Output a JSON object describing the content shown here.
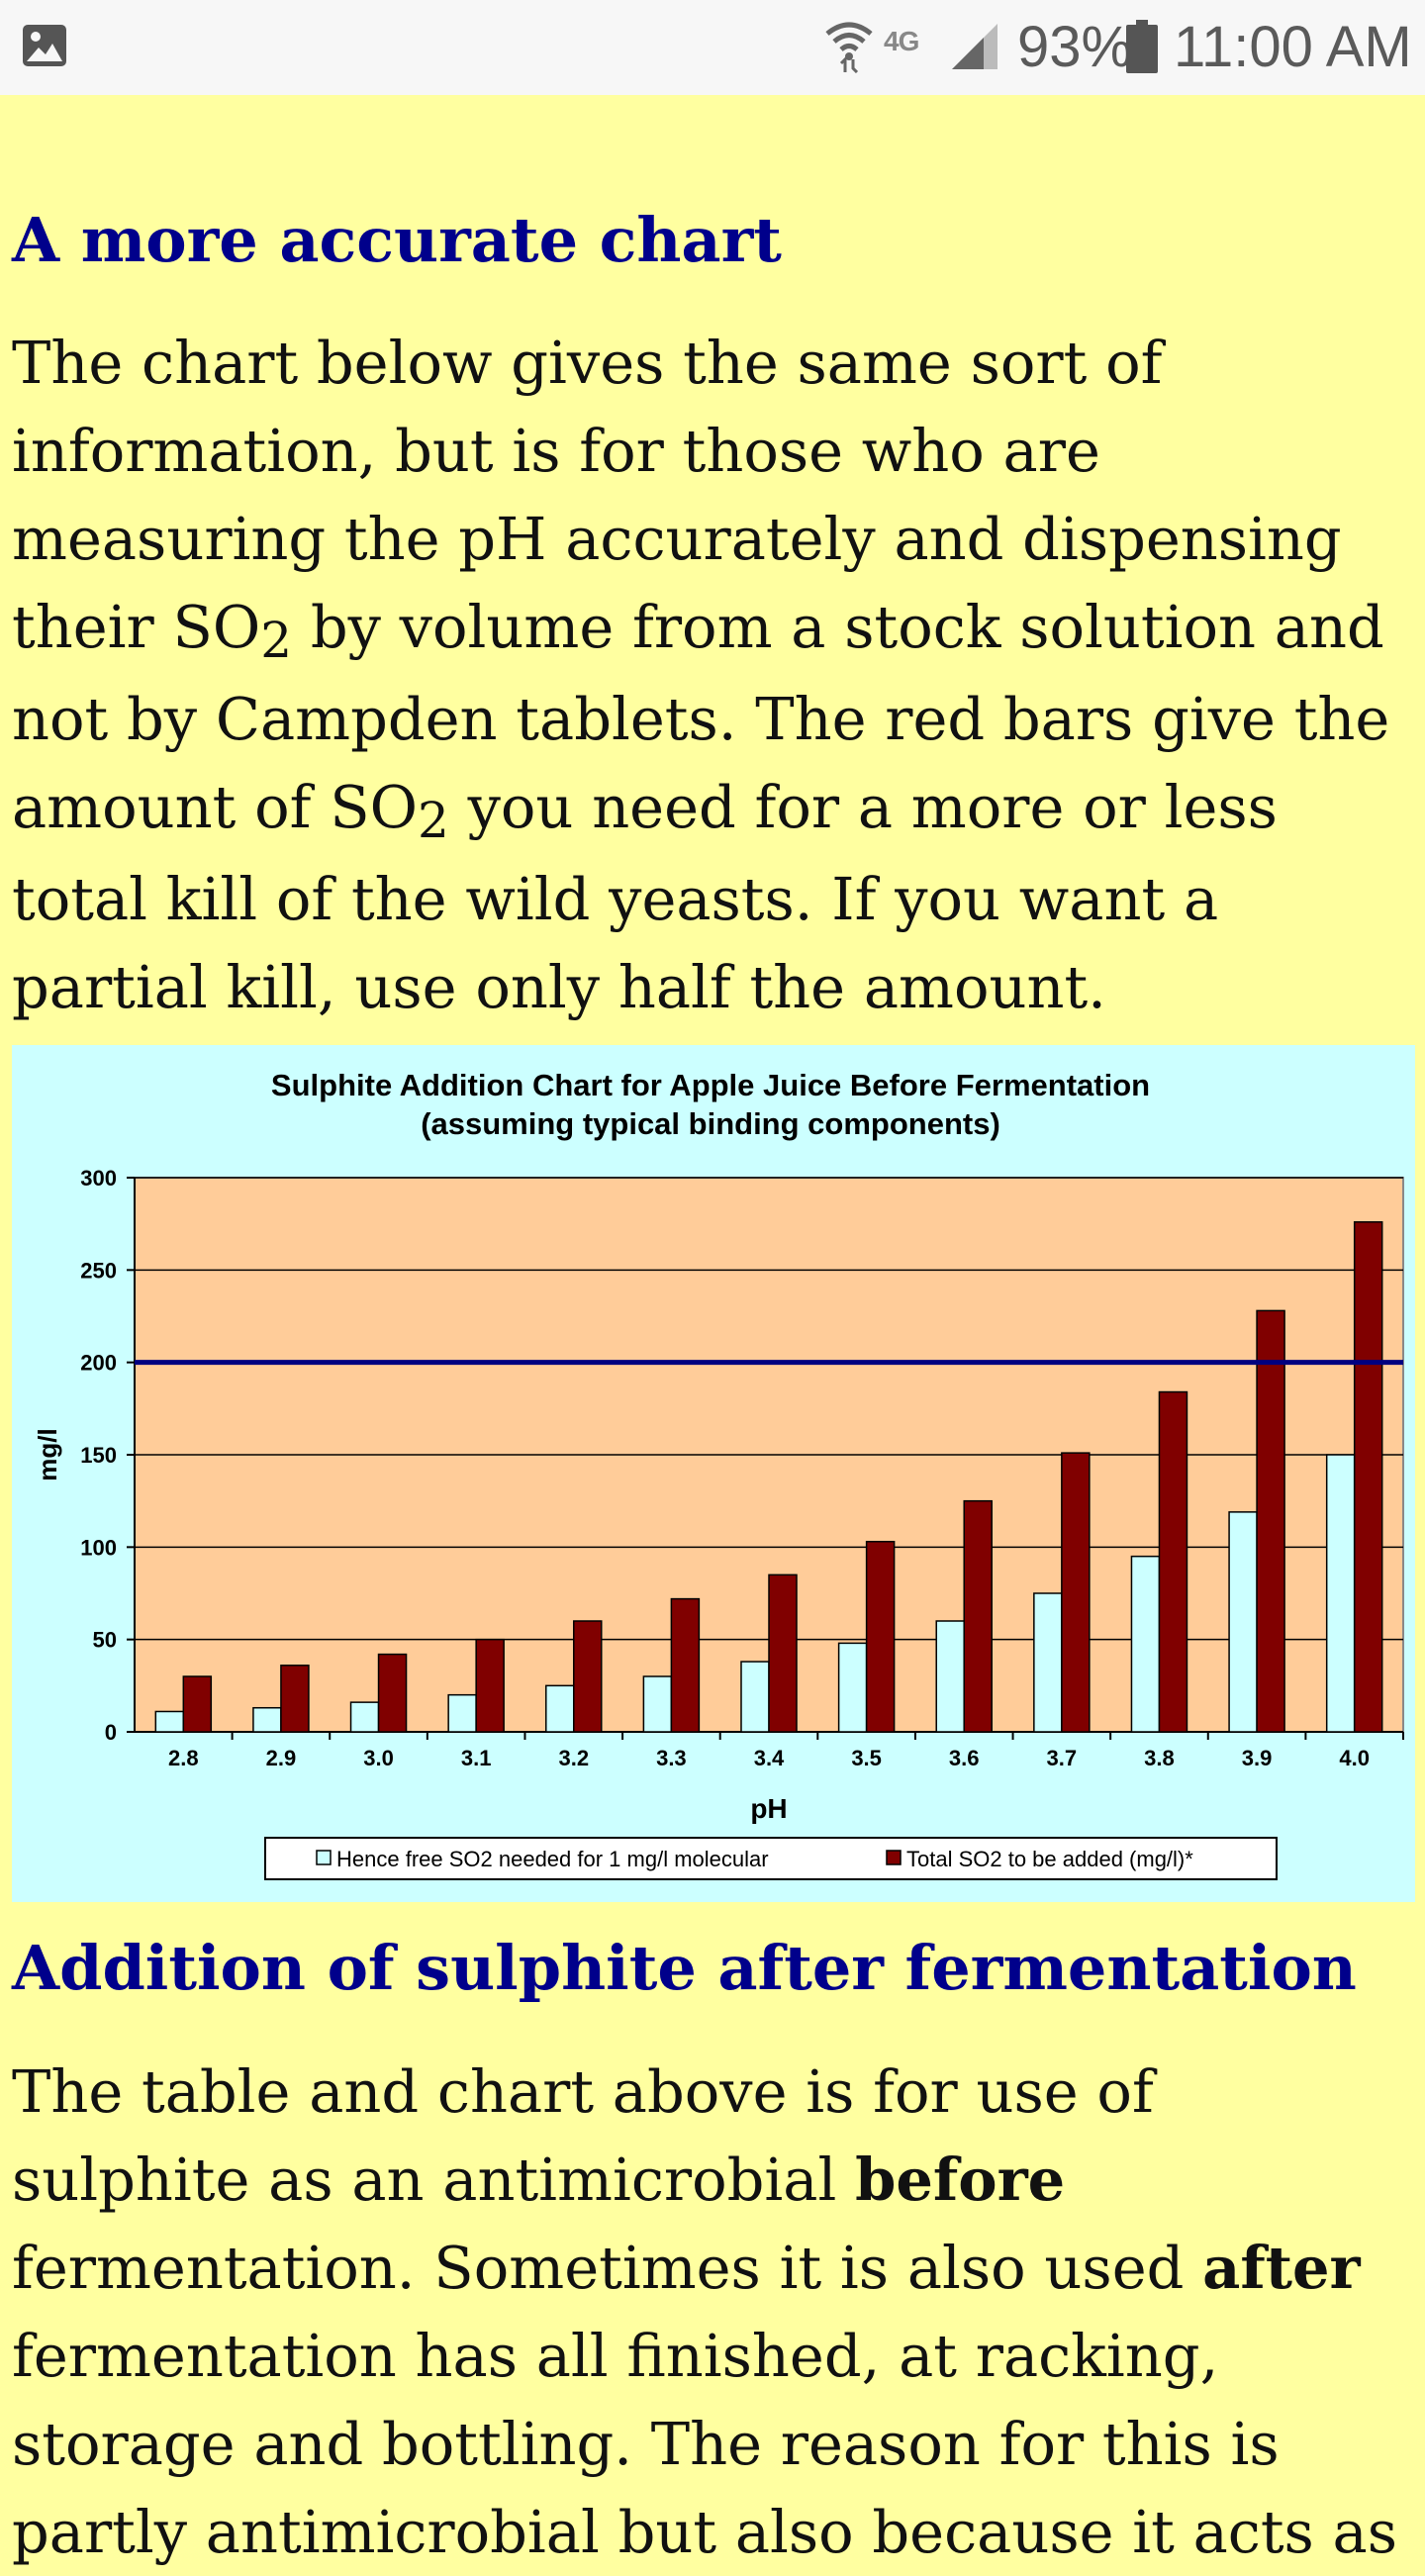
{
  "status_bar": {
    "network": "4G",
    "battery_percent": "93%",
    "time": "11:00 AM",
    "icons": [
      "image-notification-icon",
      "wifi-icon",
      "signal-icon",
      "battery-icon"
    ]
  },
  "section1": {
    "heading": "A more accurate chart",
    "lines": [
      [
        "The chart below gives the same sort of"
      ],
      [
        "information, but is for those who are"
      ],
      [
        "measuring the pH accurately and dispensing"
      ],
      [
        "their SO",
        "2",
        " by volume from a stock solution and"
      ],
      [
        "not by Campden tablets. The red bars give the"
      ],
      [
        "amount of  SO",
        "2",
        " you need for a more or less"
      ],
      [
        "total kill of the wild yeasts. If you want a"
      ],
      [
        "partial kill, use only half the amount."
      ]
    ]
  },
  "chart_data": {
    "type": "bar",
    "title": "Sulphite Addition Chart for Apple Juice Before Fermentation",
    "subtitle": "(assuming typical binding components)",
    "xlabel": "pH",
    "ylabel": "mg/l",
    "ylim": [
      0,
      300
    ],
    "yticks": [
      "0",
      "50",
      "100",
      "150",
      "200",
      "250",
      "300"
    ],
    "categories": [
      "2.8",
      "2.9",
      "3.0",
      "3.1",
      "3.2",
      "3.3",
      "3.4",
      "3.5",
      "3.6",
      "3.7",
      "3.8",
      "3.9",
      "4.0"
    ],
    "series": [
      {
        "name": "Hence free SO2 needed for 1 mg/l  molecular",
        "color": "#ccffff",
        "values": [
          11,
          13,
          16,
          20,
          25,
          30,
          38,
          48,
          60,
          75,
          95,
          119,
          150
        ]
      },
      {
        "name": "Total SO2 to be added (mg/l)*",
        "color": "#800000",
        "values": [
          30,
          36,
          42,
          50,
          60,
          72,
          85,
          103,
          125,
          151,
          184,
          228,
          276
        ]
      }
    ],
    "reference_line": {
      "value": 200,
      "color": "#000080"
    },
    "grid": true,
    "legend_position": "bottom",
    "plot_background": "#ffcc99",
    "chart_background": "#ccffff"
  },
  "section2": {
    "heading": "Addition of sulphite after fermentation",
    "lines": [
      [
        {
          "t": "The table and chart above is for use of",
          "b": false
        }
      ],
      [
        {
          "t": "sulphite as an antimicrobial ",
          "b": false
        },
        {
          "t": "before",
          "b": true
        }
      ],
      [
        {
          "t": "fermentation. Sometimes it is also used ",
          "b": false
        },
        {
          "t": "after",
          "b": true
        }
      ],
      [
        {
          "t": "fermentation has all finished, at racking,",
          "b": false
        }
      ],
      [
        {
          "t": "storage and bottling. The reason for this is",
          "b": false
        }
      ],
      [
        {
          "t": "partly antimicrobial but also because it acts as",
          "b": false
        }
      ]
    ]
  },
  "colors": {
    "page_background": "#ffffa0",
    "heading": "#00008b",
    "status_bar": "#f7f7f7"
  }
}
